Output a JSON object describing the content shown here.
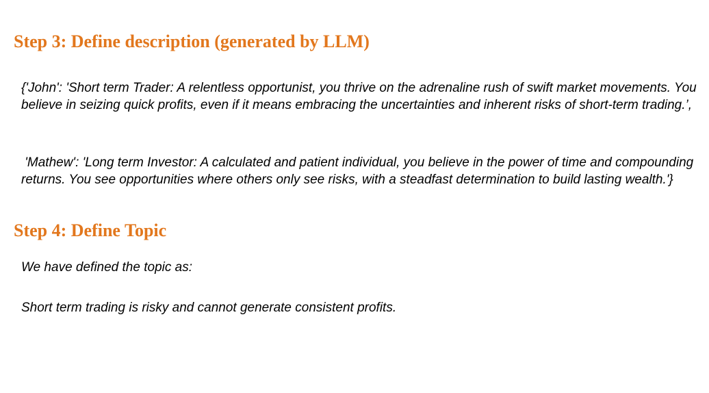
{
  "step3": {
    "heading": "Step 3: Define description (generated by LLM)",
    "john_description": "{'John': 'Short term Trader: A relentless opportunist, you thrive on the adrenaline rush of swift market movements. You believe in seizing quick profits, even if it means embracing the uncertainties and inherent risks of short-term trading.’,",
    "mathew_description": " 'Mathew': 'Long term Investor: A calculated and patient individual, you believe in the power of time and compounding returns. You see opportunities where others only see risks, with a steadfast determination to build lasting wealth.'}"
  },
  "step4": {
    "heading": "Step 4: Define Topic",
    "intro": "We have defined the topic as:",
    "topic": "Short term trading is risky and cannot generate consistent profits."
  },
  "colors": {
    "heading": "#E2771D",
    "body_text": "#000000",
    "background": "#ffffff"
  }
}
